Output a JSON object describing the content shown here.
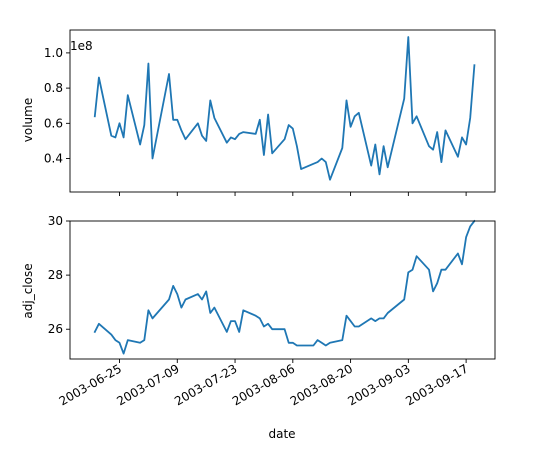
{
  "chart_data": {
    "type": "line",
    "xlabel": "date",
    "xticks": [
      "2003-06-25",
      "2003-07-09",
      "2003-07-23",
      "2003-08-06",
      "2003-08-20",
      "2003-09-03",
      "2003-09-17"
    ],
    "xlim": [
      "2003-06-13",
      "2003-09-24"
    ],
    "panels": [
      {
        "ylabel": "volume",
        "scale_label": "1e8",
        "ylim": [
          21000000,
          113000000
        ],
        "yticks": [
          0.4,
          0.6,
          0.8,
          1.0
        ],
        "ytick_multiplier": 100000000,
        "series": [
          {
            "color": "#1f77b4",
            "x": [
              "2003-06-19",
              "2003-06-20",
              "2003-06-23",
              "2003-06-24",
              "2003-06-25",
              "2003-06-26",
              "2003-06-27",
              "2003-06-30",
              "2003-07-01",
              "2003-07-02",
              "2003-07-03",
              "2003-07-07",
              "2003-07-08",
              "2003-07-09",
              "2003-07-10",
              "2003-07-11",
              "2003-07-14",
              "2003-07-15",
              "2003-07-16",
              "2003-07-17",
              "2003-07-18",
              "2003-07-21",
              "2003-07-22",
              "2003-07-23",
              "2003-07-24",
              "2003-07-25",
              "2003-07-28",
              "2003-07-29",
              "2003-07-30",
              "2003-07-31",
              "2003-08-01",
              "2003-08-04",
              "2003-08-05",
              "2003-08-06",
              "2003-08-07",
              "2003-08-08",
              "2003-08-11",
              "2003-08-12",
              "2003-08-13",
              "2003-08-14",
              "2003-08-15",
              "2003-08-18",
              "2003-08-19",
              "2003-08-20",
              "2003-08-21",
              "2003-08-22",
              "2003-08-25",
              "2003-08-26",
              "2003-08-27",
              "2003-08-28",
              "2003-08-29",
              "2003-09-02",
              "2003-09-03",
              "2003-09-04",
              "2003-09-05",
              "2003-09-08",
              "2003-09-09",
              "2003-09-10",
              "2003-09-11",
              "2003-09-12",
              "2003-09-15",
              "2003-09-16",
              "2003-09-17",
              "2003-09-18",
              "2003-09-19"
            ],
            "y": [
              64000000,
              86000000,
              53000000,
              52000000,
              60000000,
              52000000,
              76000000,
              48000000,
              59000000,
              94000000,
              40000000,
              88000000,
              62000000,
              62000000,
              56000000,
              51000000,
              60000000,
              53000000,
              50000000,
              73000000,
              63000000,
              49000000,
              52000000,
              51000000,
              54000000,
              55000000,
              54000000,
              62000000,
              42000000,
              65000000,
              43000000,
              51000000,
              59000000,
              57000000,
              47000000,
              34000000,
              37000000,
              38000000,
              40000000,
              38000000,
              28000000,
              46000000,
              73000000,
              58000000,
              64000000,
              66000000,
              36000000,
              48000000,
              31000000,
              47000000,
              35000000,
              74000000,
              109000000,
              60000000,
              64000000,
              47000000,
              45000000,
              55000000,
              38000000,
              56000000,
              41000000,
              52000000,
              48000000,
              63000000,
              93000000
            ]
          }
        ]
      },
      {
        "ylabel": "adj_close",
        "ylim": [
          24.9,
          30.0
        ],
        "yticks": [
          26,
          28,
          30
        ],
        "series": [
          {
            "color": "#1f77b4",
            "x": [
              "2003-06-19",
              "2003-06-20",
              "2003-06-23",
              "2003-06-24",
              "2003-06-25",
              "2003-06-26",
              "2003-06-27",
              "2003-06-30",
              "2003-07-01",
              "2003-07-02",
              "2003-07-03",
              "2003-07-07",
              "2003-07-08",
              "2003-07-09",
              "2003-07-10",
              "2003-07-11",
              "2003-07-14",
              "2003-07-15",
              "2003-07-16",
              "2003-07-17",
              "2003-07-18",
              "2003-07-21",
              "2003-07-22",
              "2003-07-23",
              "2003-07-24",
              "2003-07-25",
              "2003-07-28",
              "2003-07-29",
              "2003-07-30",
              "2003-07-31",
              "2003-08-01",
              "2003-08-04",
              "2003-08-05",
              "2003-08-06",
              "2003-08-07",
              "2003-08-08",
              "2003-08-11",
              "2003-08-12",
              "2003-08-13",
              "2003-08-14",
              "2003-08-15",
              "2003-08-18",
              "2003-08-19",
              "2003-08-20",
              "2003-08-21",
              "2003-08-22",
              "2003-08-25",
              "2003-08-26",
              "2003-08-27",
              "2003-08-28",
              "2003-08-29",
              "2003-09-02",
              "2003-09-03",
              "2003-09-04",
              "2003-09-05",
              "2003-09-08",
              "2003-09-09",
              "2003-09-10",
              "2003-09-11",
              "2003-09-12",
              "2003-09-15",
              "2003-09-16",
              "2003-09-17",
              "2003-09-18",
              "2003-09-19"
            ],
            "y": [
              25.9,
              26.2,
              25.8,
              25.6,
              25.5,
              25.1,
              25.6,
              25.5,
              25.6,
              26.7,
              26.4,
              27.1,
              27.6,
              27.3,
              26.8,
              27.1,
              27.3,
              27.1,
              27.4,
              26.6,
              26.8,
              25.9,
              26.3,
              26.3,
              25.9,
              26.7,
              26.5,
              26.4,
              26.1,
              26.2,
              26.0,
              26.0,
              25.5,
              25.5,
              25.4,
              25.4,
              25.4,
              25.6,
              25.5,
              25.4,
              25.5,
              25.6,
              26.5,
              26.3,
              26.1,
              26.1,
              26.4,
              26.3,
              26.4,
              26.4,
              26.6,
              27.1,
              28.1,
              28.2,
              28.7,
              28.2,
              27.4,
              27.7,
              28.2,
              28.2,
              28.8,
              28.4,
              29.4,
              29.8,
              30.0
            ]
          }
        ]
      }
    ]
  }
}
